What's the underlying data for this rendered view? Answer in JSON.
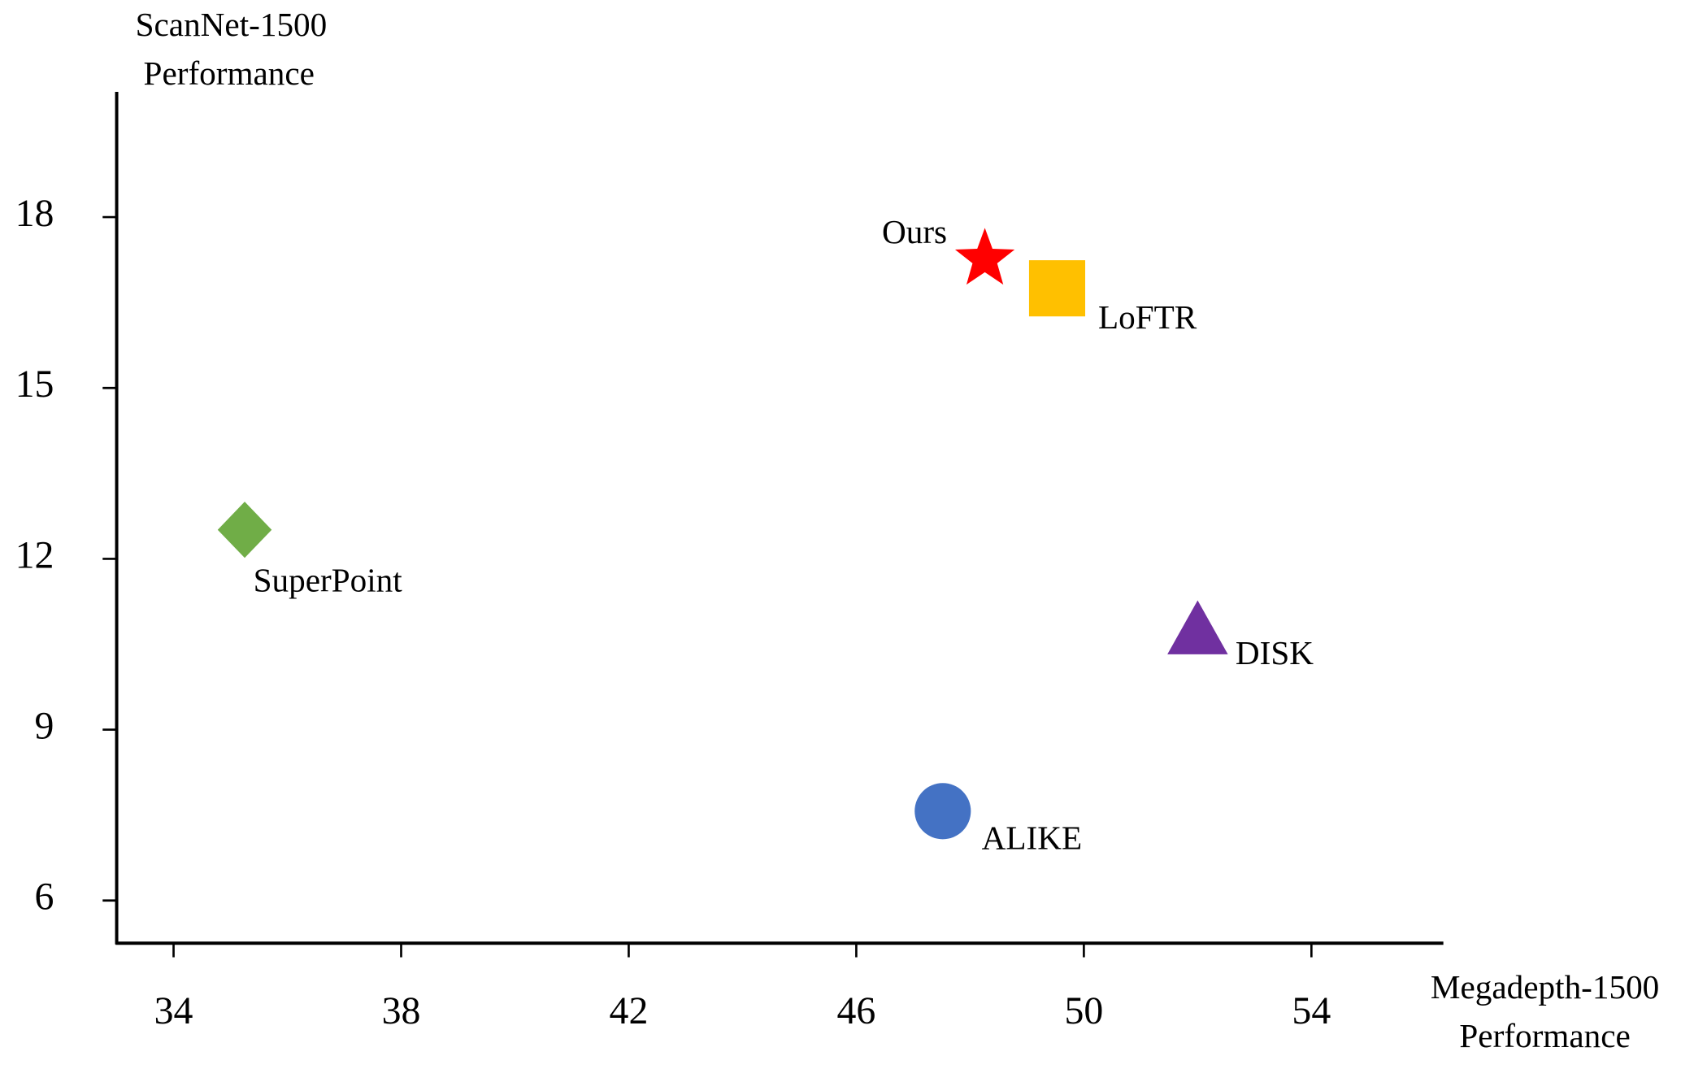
{
  "chart_data": {
    "type": "scatter",
    "xlabel": [
      "Megadepth-1500",
      "Performance"
    ],
    "ylabel": [
      "ScanNet-1500",
      "Performance"
    ],
    "xlim": [
      33,
      56.3
    ],
    "ylim": [
      5.25,
      20.2
    ],
    "xticks": [
      34,
      38,
      42,
      46,
      50,
      54
    ],
    "yticks": [
      6,
      9,
      12,
      15,
      18
    ],
    "series": [
      {
        "name": "Ours",
        "color": "#ff0000",
        "marker": "star",
        "x": [
          48.26
        ],
        "y": [
          17.26
        ]
      },
      {
        "name": "LoFTR",
        "color": "#ffc000",
        "marker": "square",
        "x": [
          49.53
        ],
        "y": [
          16.75
        ]
      },
      {
        "name": "SuperPoint",
        "color": "#70ad47",
        "marker": "diamond",
        "x": [
          35.25
        ],
        "y": [
          12.51
        ]
      },
      {
        "name": "DISK",
        "color": "#7030a0",
        "marker": "triangle",
        "x": [
          52.0
        ],
        "y": [
          10.74
        ]
      },
      {
        "name": "ALIKE",
        "color": "#4472c4",
        "marker": "circle",
        "x": [
          47.52
        ],
        "y": [
          7.57
        ]
      }
    ]
  }
}
